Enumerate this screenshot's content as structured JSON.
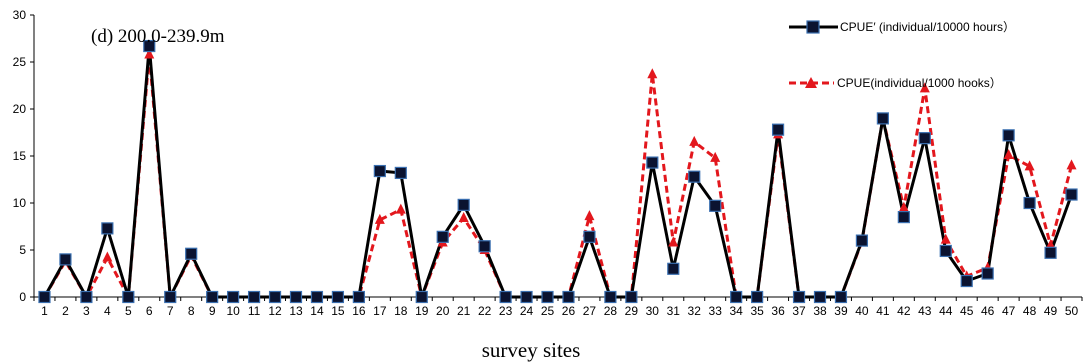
{
  "chart_data": {
    "type": "line",
    "annotation": "(d) 200.0-239.9m",
    "xlabel": "survey  sites",
    "ylabel": "",
    "ylim": [
      0,
      30
    ],
    "yticks": [
      0,
      5,
      10,
      15,
      20,
      25,
      30
    ],
    "categories": [
      "1",
      "2",
      "3",
      "4",
      "5",
      "6",
      "7",
      "8",
      "9",
      "10",
      "11",
      "12",
      "13",
      "14",
      "15",
      "16",
      "17",
      "18",
      "19",
      "20",
      "21",
      "22",
      "23",
      "24",
      "25",
      "26",
      "27",
      "28",
      "29",
      "30",
      "31",
      "32",
      "33",
      "34",
      "35",
      "36",
      "37",
      "38",
      "39",
      "40",
      "41",
      "42",
      "43",
      "44",
      "45",
      "46",
      "47",
      "48",
      "49",
      "50"
    ],
    "series": [
      {
        "name": "CPUE′ (individual/10000 hours）",
        "color": "#000000",
        "line": "solid",
        "marker": "square",
        "marker_fill": "#0b1330",
        "marker_edge": "#3a6fb0",
        "values": [
          0,
          4.0,
          0,
          7.3,
          0,
          26.7,
          0,
          4.6,
          0,
          0,
          0,
          0,
          0,
          0,
          0,
          0,
          13.4,
          13.2,
          0,
          6.4,
          9.8,
          5.4,
          0,
          0,
          0,
          0,
          6.4,
          0,
          0,
          14.3,
          3.0,
          12.8,
          9.7,
          0,
          0,
          17.8,
          0,
          0,
          0,
          6.0,
          19.0,
          8.5,
          16.9,
          4.9,
          1.7,
          2.5,
          17.2,
          10.0,
          4.7,
          10.9
        ]
      },
      {
        "name": "CPUE(individual/1000 hooks）",
        "color": "#e3171d",
        "line": "dashed",
        "marker": "triangle",
        "values": [
          0,
          3.8,
          0,
          4.2,
          0,
          25.8,
          0,
          4.4,
          0,
          0,
          0,
          0,
          0,
          0,
          0,
          0,
          8.2,
          9.3,
          0,
          5.8,
          8.4,
          5.0,
          0,
          0,
          0,
          0,
          8.6,
          0,
          0,
          23.7,
          5.8,
          16.5,
          14.8,
          0,
          0,
          17.3,
          0,
          0,
          0,
          5.9,
          19.0,
          9.5,
          22.2,
          6.1,
          2.2,
          3.1,
          15.1,
          13.9,
          5.5,
          14.0
        ]
      }
    ],
    "legend_position": "top-right",
    "grid": false
  }
}
